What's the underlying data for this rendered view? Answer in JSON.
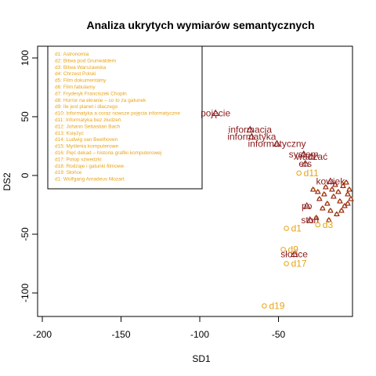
{
  "chart_data": {
    "type": "scatter",
    "title": "Analiza ukrytych wymiarów semantycznych",
    "xlabel": "SD1",
    "ylabel": "DS2",
    "xlim": [
      -203,
      -3
    ],
    "ylim": [
      -120,
      110
    ],
    "xticks": [
      -200,
      -150,
      -100,
      -50
    ],
    "yticks": [
      -100,
      -50,
      0,
      50,
      100
    ],
    "colors": {
      "documents": "#E8A317",
      "terms": "#8B1A1A"
    },
    "legend": {
      "position": "top-left",
      "entries": [
        "d1: Astronomia",
        "d2: Bitwa pod Grunwaldem",
        "d3: Bitwa Warszawska",
        "d4: Chrzest Polski",
        "d5: Film dokumentalny",
        "d6: Film fabularny",
        "d7: Fryderyk Franciszek Chopin",
        "d8: Horror na ekranie – co to za gatunek",
        "d9: Ile jest planet i dlaczego",
        "d10: Informatyka a coraz nowsze pojęcia informatyczne",
        "d11: Informatyka bez złudzeń",
        "d12: Johann Sebastian Bach",
        "d13: Księżyc",
        "d14: Ludwig van Beethoven",
        "d15: Myślenia komputerowe",
        "d16: Pięć dekad – historia grafiki komputerowej",
        "d17: Potop szwedzki",
        "d18: Rodzaje i gatunki filmowe",
        "d19: Słońce",
        "d1: Wolfgang Amadeus Mozart"
      ]
    },
    "documents": [
      {
        "label": "d1",
        "x": -45,
        "y": -45
      },
      {
        "label": "d3",
        "x": -25,
        "y": -42
      },
      {
        "label": "d9",
        "x": -47,
        "y": -63
      },
      {
        "label": "d17",
        "x": -45,
        "y": -75
      },
      {
        "label": "d11",
        "x": -37,
        "y": 2
      },
      {
        "label": "d19",
        "x": -59,
        "y": -111
      }
    ],
    "terms": [
      {
        "label": "pojęcie",
        "x": -90,
        "y": 53
      },
      {
        "label": "informacja",
        "x": -68,
        "y": 39
      },
      {
        "label": "informatyka",
        "x": -67,
        "y": 33
      },
      {
        "label": "informatyczny",
        "x": -51,
        "y": 27
      },
      {
        "label": "system",
        "x": -34,
        "y": 18
      },
      {
        "label": "wadzać",
        "x": -29,
        "y": 16
      },
      {
        "label": "ers",
        "x": -33,
        "y": 10
      },
      {
        "label": "kowiek",
        "x": -17,
        "y": -5
      },
      {
        "label": "po",
        "x": -32,
        "y": -26
      },
      {
        "label": "stoń",
        "x": -30,
        "y": -38
      },
      {
        "label": "słońce",
        "x": -40,
        "y": -67
      }
    ],
    "cluster": [
      [
        -28,
        -12
      ],
      [
        -25,
        -14
      ],
      [
        -20,
        -10
      ],
      [
        -16,
        -12
      ],
      [
        -12,
        -14
      ],
      [
        -9,
        -9
      ],
      [
        -6,
        -16
      ],
      [
        -4,
        -20
      ],
      [
        -24,
        -20
      ],
      [
        -19,
        -24
      ],
      [
        -15,
        -18
      ],
      [
        -11,
        -22
      ],
      [
        -8,
        -26
      ],
      [
        -5,
        -12
      ],
      [
        -22,
        -28
      ],
      [
        -17,
        -30
      ],
      [
        -13,
        -33
      ],
      [
        -26,
        -36
      ],
      [
        -18,
        -38
      ],
      [
        -10,
        -30
      ],
      [
        -6,
        -24
      ],
      [
        -21,
        -16
      ],
      [
        -14,
        -8
      ],
      [
        -7,
        -6
      ]
    ]
  }
}
